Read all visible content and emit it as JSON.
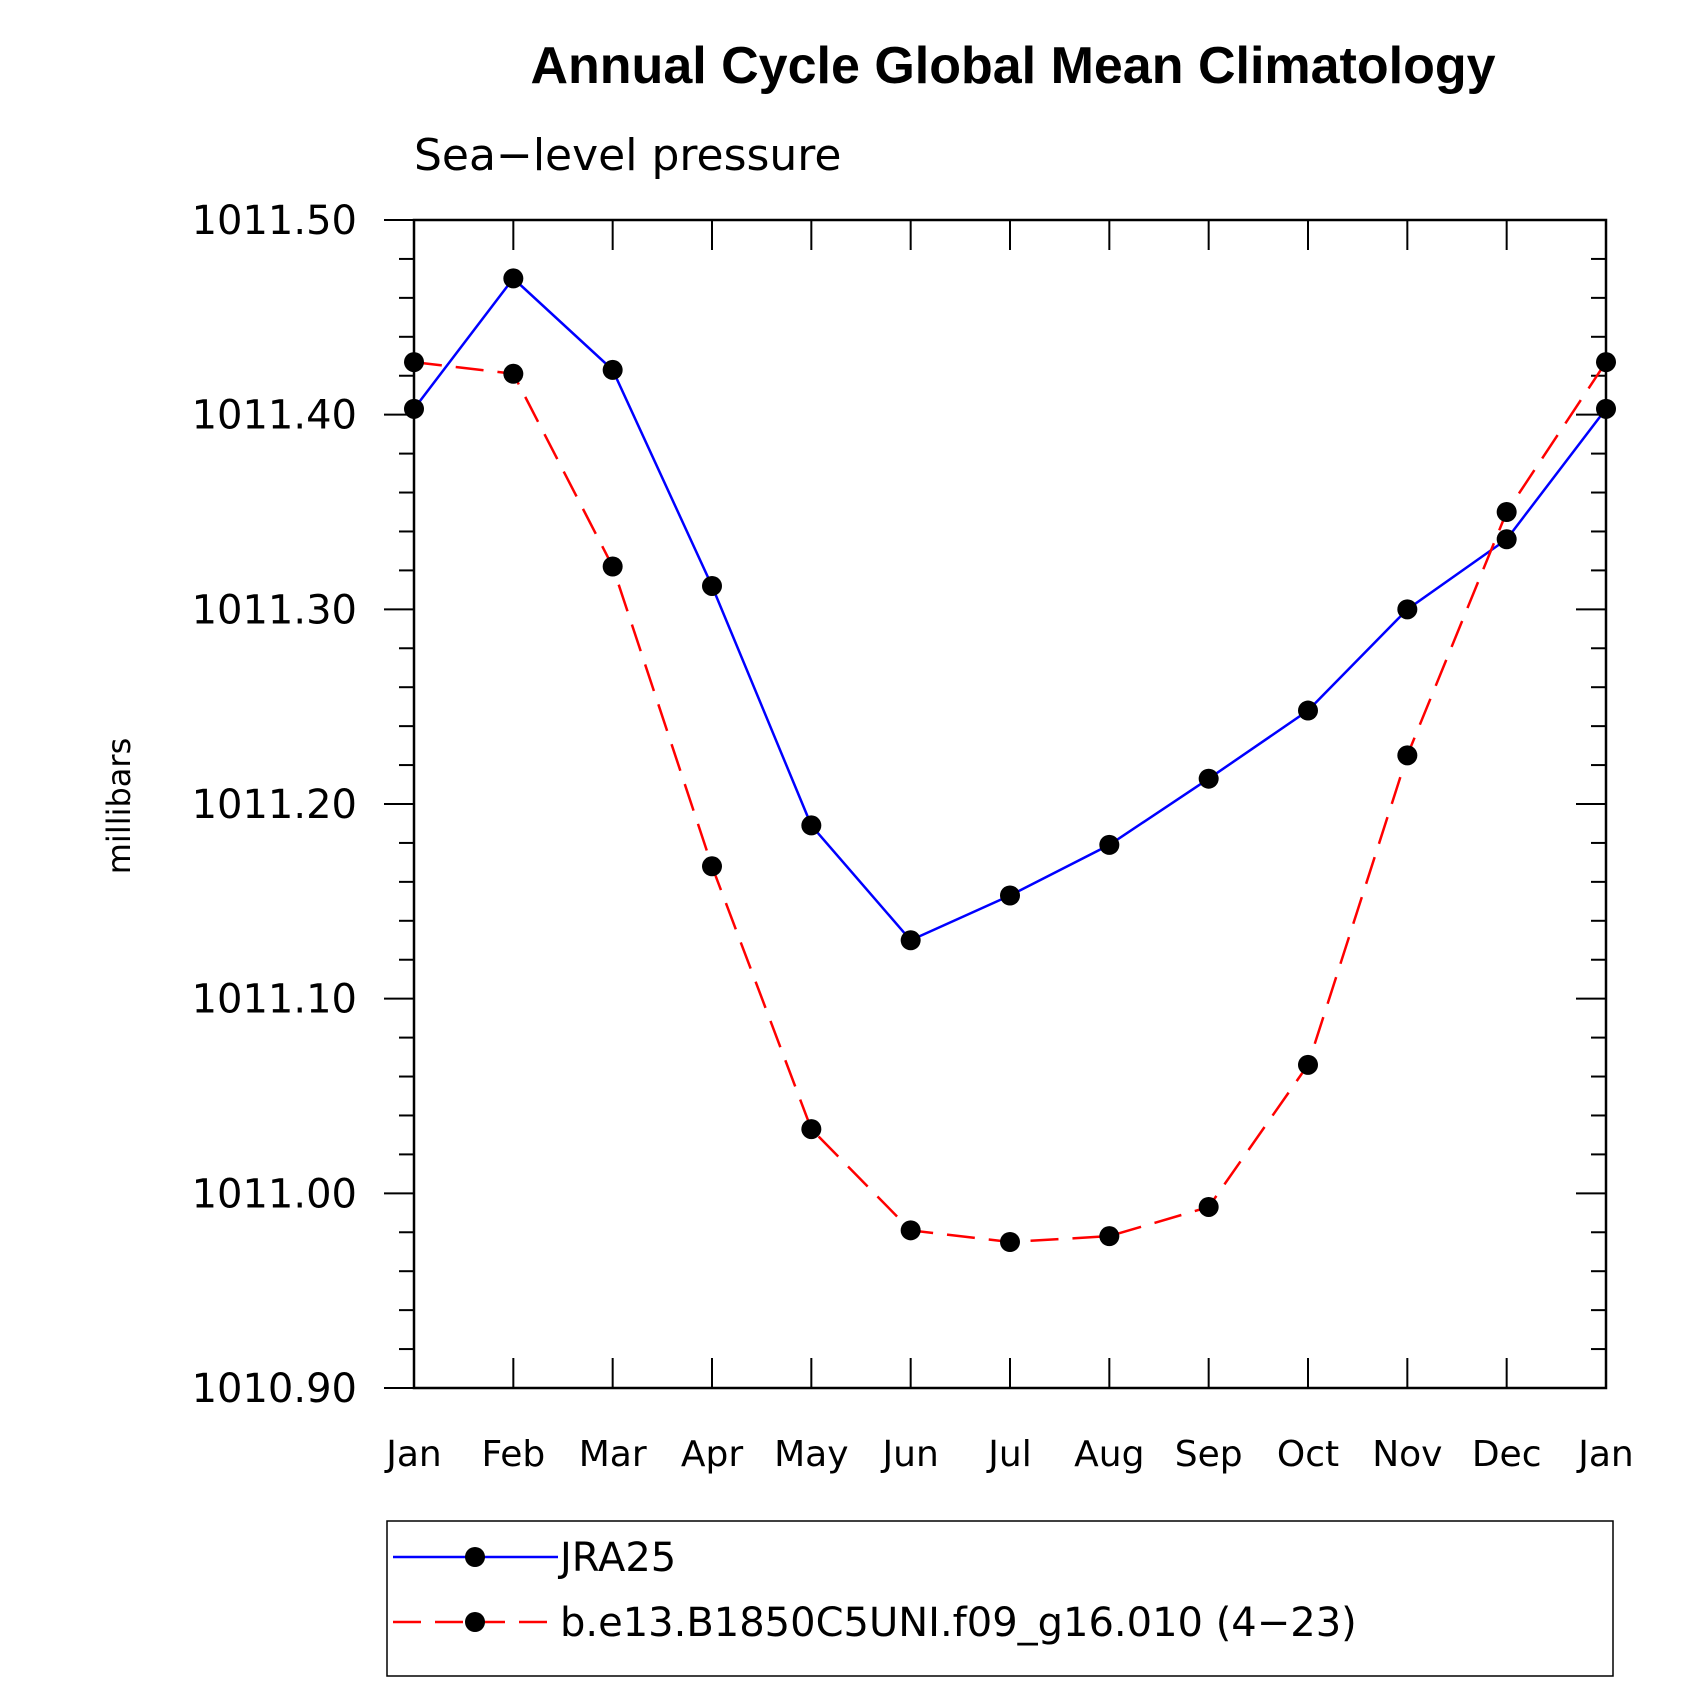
{
  "chart_data": {
    "type": "line",
    "title": "Annual Cycle Global Mean Climatology",
    "subtitle": "Sea−level pressure",
    "ylabel": "millibars",
    "xlabel": "",
    "categories": [
      "Jan",
      "Feb",
      "Mar",
      "Apr",
      "May",
      "Jun",
      "Jul",
      "Aug",
      "Sep",
      "Oct",
      "Nov",
      "Dec",
      "Jan"
    ],
    "ylim": [
      1010.9,
      1011.5
    ],
    "yticks": [
      "1011.50",
      "1011.40",
      "1011.30",
      "1011.20",
      "1011.10",
      "1011.00",
      "1010.90"
    ],
    "grid": false,
    "legend_position": "bottom",
    "series": [
      {
        "name": "JRA25",
        "color": "#0000ff",
        "style": "solid",
        "marker": "filled-circle",
        "values": [
          1011.403,
          1011.47,
          1011.423,
          1011.312,
          1011.189,
          1011.13,
          1011.153,
          1011.179,
          1011.213,
          1011.248,
          1011.3,
          1011.336,
          1011.403
        ]
      },
      {
        "name": "b.e13.B1850C5UNI.f09_g16.010 (4−23)",
        "color": "#ff0000",
        "style": "dashed",
        "marker": "filled-circle",
        "values": [
          1011.427,
          1011.421,
          1011.322,
          1011.168,
          1011.033,
          1010.981,
          1010.975,
          1010.978,
          1010.993,
          1011.066,
          1011.225,
          1011.35,
          1011.427
        ]
      }
    ]
  }
}
